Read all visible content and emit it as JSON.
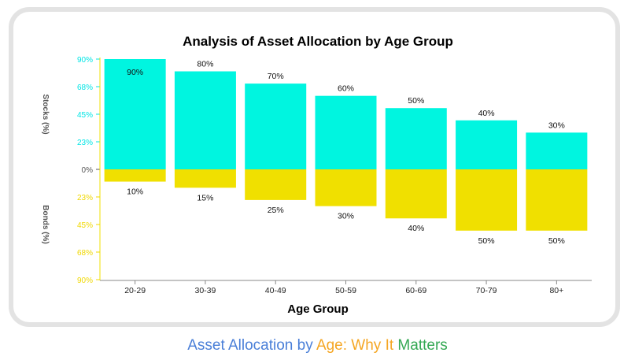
{
  "caption": {
    "parts": [
      {
        "text": "Asset Allocation by ",
        "color": "#4a7fd8"
      },
      {
        "text": "Age: Why It ",
        "color": "#f5a623"
      },
      {
        "text": "Matters",
        "color": "#34a853"
      }
    ]
  },
  "chart_data": {
    "type": "bar",
    "title": "Analysis of Asset Allocation by Age Group",
    "xlabel": "Age Group",
    "ylabel_top": "Stocks (%)",
    "ylabel_bottom": "Bonds (%)",
    "categories": [
      "20-29",
      "30-39",
      "40-49",
      "50-59",
      "60-69",
      "70-79",
      "80+"
    ],
    "series": [
      {
        "name": "Stocks",
        "values": [
          90,
          80,
          70,
          60,
          50,
          40,
          30
        ],
        "color": "#00f5e0",
        "direction": "up"
      },
      {
        "name": "Bonds",
        "values": [
          10,
          15,
          25,
          30,
          40,
          50,
          50
        ],
        "color": "#f0e000",
        "direction": "down"
      }
    ],
    "data_labels": {
      "stocks": [
        "90%",
        "80%",
        "70%",
        "60%",
        "50%",
        "40%",
        "30%"
      ],
      "bonds": [
        "10%",
        "15%",
        "25%",
        "30%",
        "40%",
        "50%",
        "50%"
      ]
    },
    "y_ticks_top": [
      "90%",
      "68%",
      "45%",
      "23%",
      "0%"
    ],
    "y_ticks_bottom": [
      "23%",
      "45%",
      "68%",
      "90%"
    ],
    "ylim": [
      -90,
      90
    ],
    "tick_color_top": "#00e5e5",
    "tick_color_zero": "#555555",
    "tick_color_bottom": "#f0d800",
    "grid": false
  }
}
